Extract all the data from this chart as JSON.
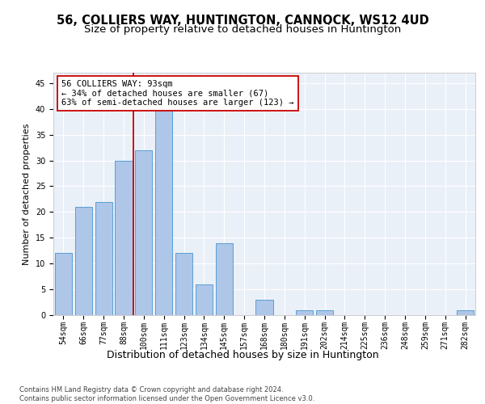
{
  "title": "56, COLLIERS WAY, HUNTINGTON, CANNOCK, WS12 4UD",
  "subtitle": "Size of property relative to detached houses in Huntington",
  "xlabel": "Distribution of detached houses by size in Huntington",
  "ylabel": "Number of detached properties",
  "categories": [
    "54sqm",
    "66sqm",
    "77sqm",
    "88sqm",
    "100sqm",
    "111sqm",
    "123sqm",
    "134sqm",
    "145sqm",
    "157sqm",
    "168sqm",
    "180sqm",
    "191sqm",
    "202sqm",
    "214sqm",
    "225sqm",
    "236sqm",
    "248sqm",
    "259sqm",
    "271sqm",
    "282sqm"
  ],
  "values": [
    12,
    21,
    22,
    30,
    32,
    41,
    12,
    6,
    14,
    0,
    3,
    0,
    1,
    1,
    0,
    0,
    0,
    0,
    0,
    0,
    1
  ],
  "bar_color": "#aec6e8",
  "bar_edgecolor": "#5a9fd4",
  "vline_x": 3.5,
  "vline_color": "#cc0000",
  "annotation_text": "56 COLLIERS WAY: 93sqm\n← 34% of detached houses are smaller (67)\n63% of semi-detached houses are larger (123) →",
  "annotation_box_color": "#ffffff",
  "annotation_box_edgecolor": "#cc0000",
  "ylim": [
    0,
    47
  ],
  "yticks": [
    0,
    5,
    10,
    15,
    20,
    25,
    30,
    35,
    40,
    45
  ],
  "bg_color": "#eaf0f8",
  "footnote": "Contains HM Land Registry data © Crown copyright and database right 2024.\nContains public sector information licensed under the Open Government Licence v3.0.",
  "title_fontsize": 10.5,
  "subtitle_fontsize": 9.5,
  "xlabel_fontsize": 9,
  "ylabel_fontsize": 8,
  "tick_fontsize": 7,
  "annot_fontsize": 7.5,
  "footnote_fontsize": 6
}
